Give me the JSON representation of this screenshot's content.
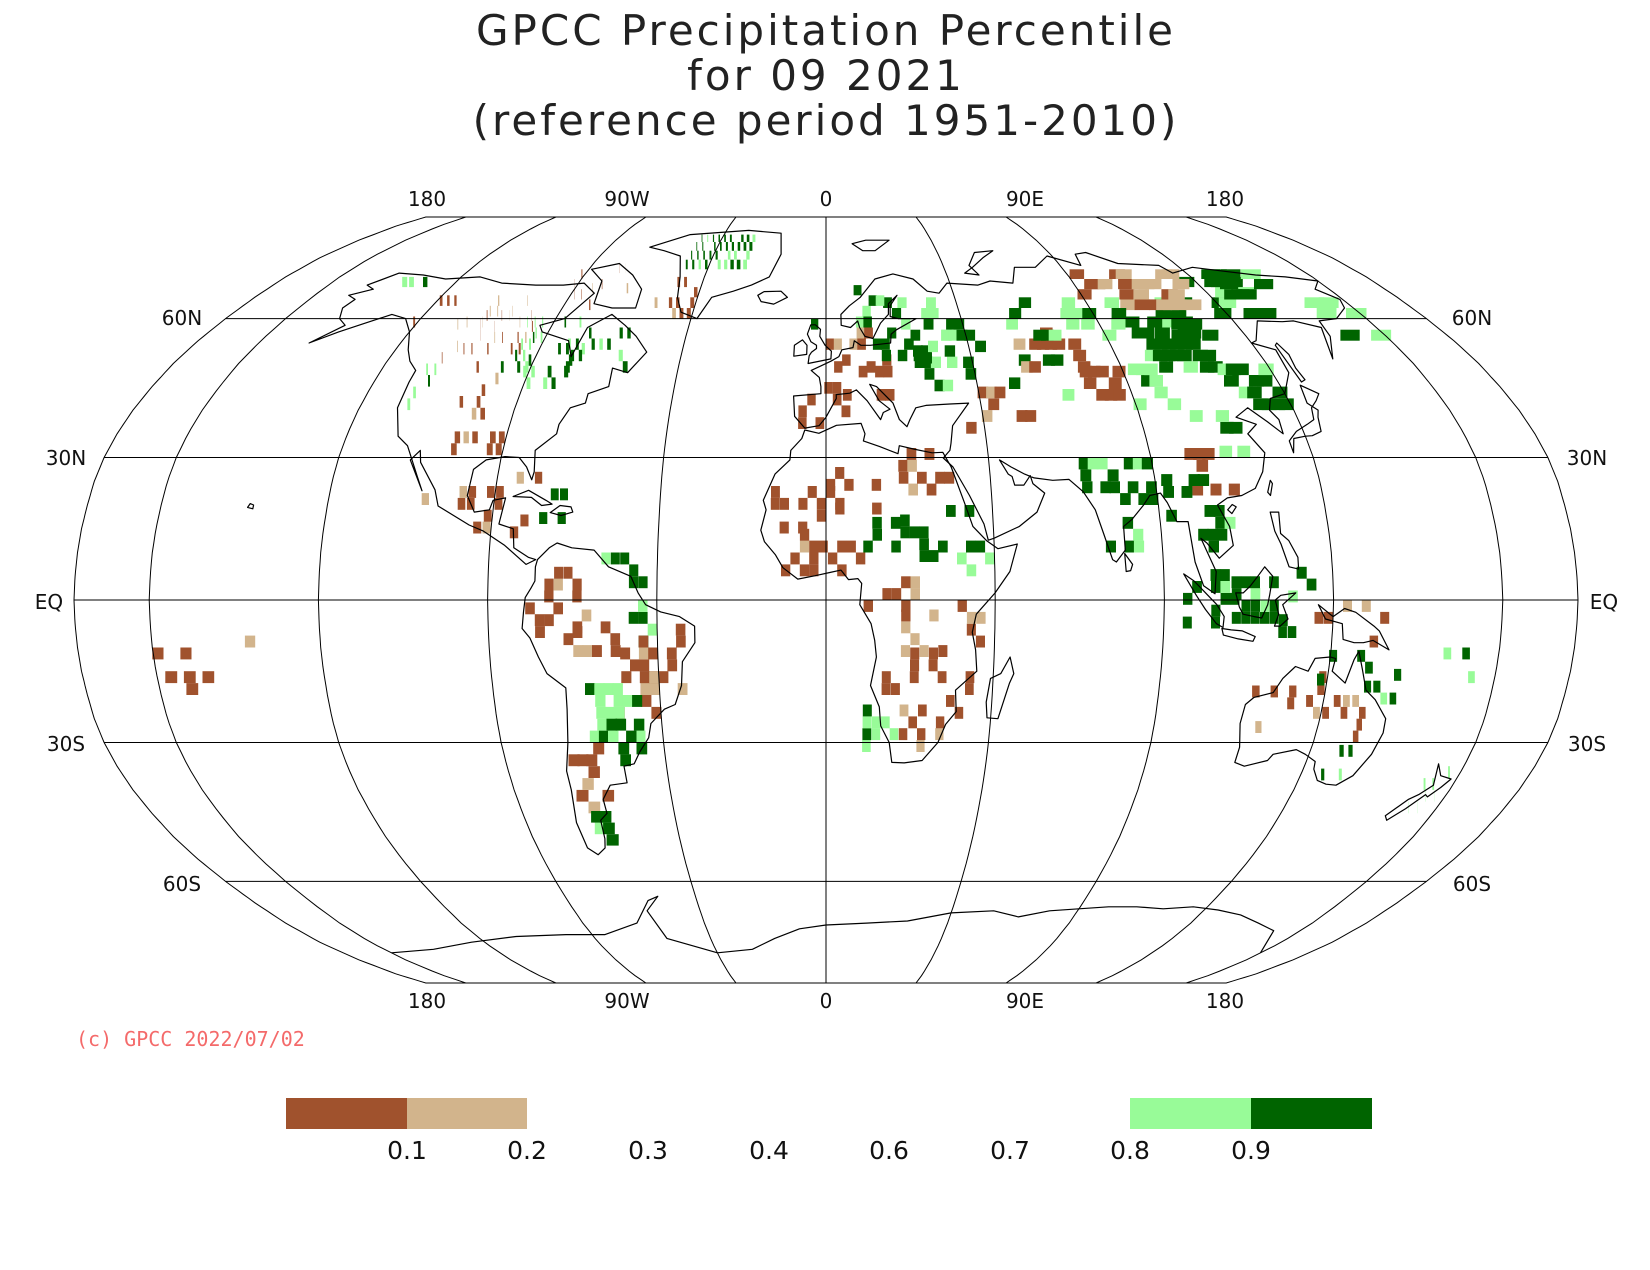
{
  "title": {
    "line1": "GPCC Precipitation Percentile",
    "line2": "for 09 2021",
    "line3": "(reference period 1951-2010)"
  },
  "map": {
    "projection": "Robinson-like global",
    "lon_labels": [
      "180",
      "90W",
      "0",
      "90E",
      "180"
    ],
    "lat_labels": {
      "n60": "60N",
      "n30": "30N",
      "eq": "EQ",
      "s30": "30S",
      "s60": "60S"
    }
  },
  "copyright": {
    "text": "(c) GPCC 2022/07/02",
    "color": "#f46a6a"
  },
  "legend": {
    "bins": [
      {
        "range": "< 0.1",
        "color": "#a0522d"
      },
      {
        "range": "0.1-0.2",
        "color": "#d2b48c"
      },
      {
        "range": "0.8-0.9",
        "color": "#98fb98"
      },
      {
        "range": ">= 0.9",
        "color": "#006400"
      }
    ],
    "labels": [
      "0.1",
      "0.2",
      "0.3",
      "0.4",
      "0.6",
      "0.7",
      "0.8",
      "0.9"
    ]
  },
  "colors": {
    "very_dry": "#a0522d",
    "dry": "#d2b48c",
    "wet": "#98fb98",
    "very_wet": "#006400",
    "copyright": "#f46a6a"
  }
}
